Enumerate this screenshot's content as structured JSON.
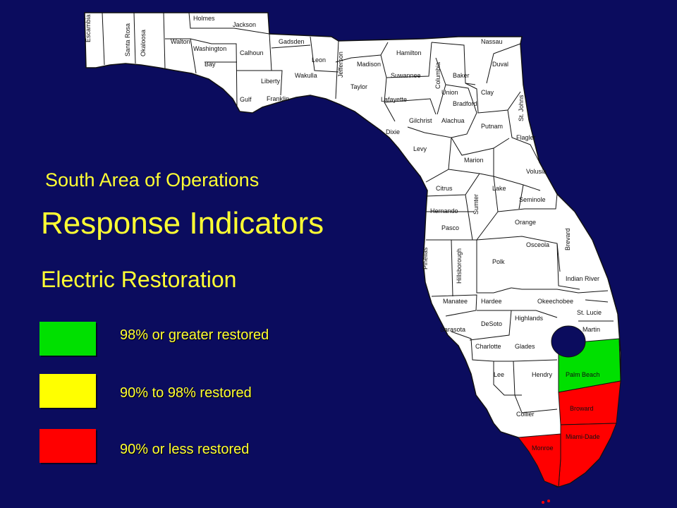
{
  "slide": {
    "subtitle": "South Area of Operations",
    "title": "Response Indicators",
    "section": "Electric Restoration"
  },
  "legend": [
    {
      "label": "98% or greater restored",
      "color": "#00e000"
    },
    {
      "label": "90% to 98% restored",
      "color": "#ffff00"
    },
    {
      "label": "90% or less restored",
      "color": "#ff0000"
    }
  ],
  "colors": {
    "background": "#0b0c5e",
    "land": "#ffffff",
    "county_border": "#111111",
    "text": "#ffff33"
  },
  "counties": {
    "escambia": "Escambia",
    "santa_rosa": "Santa Rosa",
    "okaloosa": "Okaloosa",
    "holmes": "Holmes",
    "jackson": "Jackson",
    "walton": "Walton",
    "washington": "Washington",
    "bay": "Bay",
    "calhoun": "Calhoun",
    "gadsden": "Gadsden",
    "leon": "Leon",
    "jefferson": "Jefferson",
    "wakulla": "Wakulla",
    "liberty": "Liberty",
    "gulf": "Gulf",
    "franklin": "Franklin",
    "madison": "Madison",
    "hamilton": "Hamilton",
    "suwannee": "Suwannee",
    "taylor": "Taylor",
    "lafayette": "Lafayette",
    "columbia": "Columbia",
    "baker": "Baker",
    "nassau": "Nassau",
    "duval": "Duval",
    "union": "Union",
    "bradford": "Bradford",
    "clay": "Clay",
    "st_johns": "St. Johns",
    "gilchrist": "Gilchrist",
    "alachua": "Alachua",
    "putnam": "Putnam",
    "flagler": "Flagler",
    "dixie": "Dixie",
    "levy": "Levy",
    "marion": "Marion",
    "volusia": "Volusia",
    "citrus": "Citrus",
    "lake": "Lake",
    "sumter": "Sumter",
    "seminole": "Seminole",
    "hernando": "Hernando",
    "orange": "Orange",
    "brevard": "Brevard",
    "pasco": "Pasco",
    "osceola": "Osceola",
    "pinellas": "Pinellas",
    "hillsborough": "Hillsborough",
    "polk": "Polk",
    "indian_river": "Indian River",
    "manatee": "Manatee",
    "hardee": "Hardee",
    "okeechobee": "Okeechobee",
    "st_lucie": "St. Lucie",
    "highlands": "Highlands",
    "desoto": "DeSoto",
    "sarasota": "Sarasota",
    "martin": "Martin",
    "charlotte": "Charlotte",
    "glades": "Glades",
    "lee": "Lee",
    "hendry": "Hendry",
    "palm_beach": "Palm Beach",
    "broward": "Broward",
    "collier": "Collier",
    "miami_dade": "Miami-Dade",
    "monroe": "Monroe"
  },
  "status": {
    "palm_beach": "98% or greater restored",
    "broward": "90% or less restored",
    "miami_dade": "90% or less restored",
    "monroe": "90% or less restored"
  }
}
